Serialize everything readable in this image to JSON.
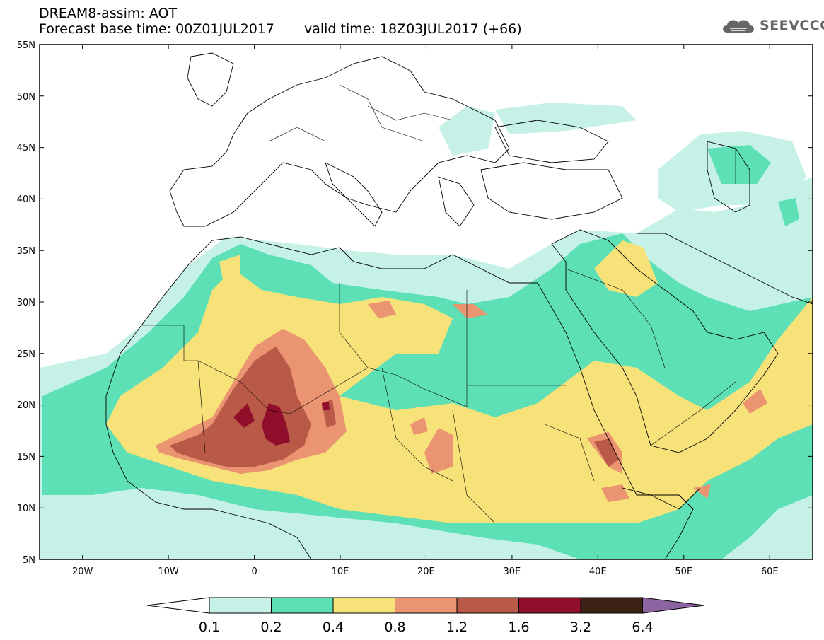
{
  "header": {
    "model": "DREAM8-assim: AOT",
    "base_time": "Forecast base time: 00Z01JUL2017",
    "valid_time": "valid time: 18Z03JUL2017 (+66)",
    "logo_text": "SEEVCCC"
  },
  "map": {
    "lat_labels": [
      "55N",
      "50N",
      "45N",
      "40N",
      "35N",
      "30N",
      "25N",
      "20N",
      "15N",
      "10N",
      "5N"
    ],
    "lon_labels": [
      "20W",
      "10W",
      "0",
      "10E",
      "20E",
      "30E",
      "40E",
      "50E",
      "60E"
    ],
    "extent": {
      "lon_min": -25,
      "lon_max": 65,
      "lat_min": 5,
      "lat_max": 55
    }
  },
  "colorbar": {
    "labels": [
      "0.1",
      "0.2",
      "0.4",
      "0.8",
      "1.2",
      "1.6",
      "3.2",
      "6.4"
    ],
    "colors": [
      "#ffffff",
      "#c6f1e7",
      "#5ee0b6",
      "#f7e27a",
      "#ea9472",
      "#b95947",
      "#8f0f2b",
      "#3b2215",
      "#8c64a2"
    ]
  },
  "colors": {
    "ocean": "#ffffff",
    "level_01": "#c6f1e7",
    "level_02": "#5ee0b6",
    "level_04": "#f7e27a",
    "level_08": "#ea9472",
    "level_12": "#b95947",
    "level_16": "#8f0f2b",
    "border": "#000000"
  }
}
